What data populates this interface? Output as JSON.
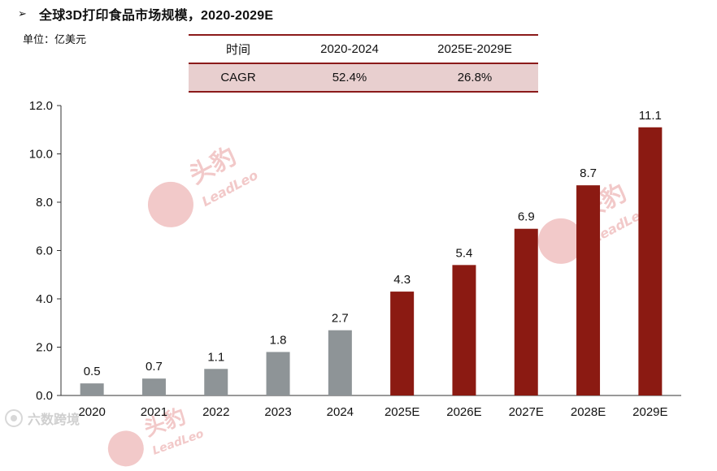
{
  "header": {
    "arrow": "➢",
    "title": "全球3D打印食品市场规模，2020-2029E",
    "unit": "单位：亿美元"
  },
  "cagr_table": {
    "headers": [
      "时间",
      "2020-2024",
      "2025E-2029E"
    ],
    "row": [
      "CAGR",
      "52.4%",
      "26.8%"
    ]
  },
  "watermarks": {
    "brand_cn": "头豹",
    "brand_en": "LeadLeo"
  },
  "footer": {
    "logo_text": "六数跨境"
  },
  "colors": {
    "actual": "#8e9497",
    "forecast": "#8b1a12",
    "accent": "#8b1a1a",
    "table_row_bg": "#e8cfcf",
    "watermark": "#f2c9c9"
  },
  "chart_data": {
    "type": "bar",
    "categories": [
      "2020",
      "2021",
      "2022",
      "2023",
      "2024",
      "2025E",
      "2026E",
      "2027E",
      "2028E",
      "2029E"
    ],
    "values": [
      0.5,
      0.7,
      1.1,
      1.8,
      2.7,
      4.3,
      5.4,
      6.9,
      8.7,
      11.1
    ],
    "value_labels": [
      "0.5",
      "0.7",
      "1.1",
      "1.8",
      "2.7",
      "4.3",
      "5.4",
      "6.9",
      "8.7",
      "11.1"
    ],
    "forecast_flags": [
      false,
      false,
      false,
      false,
      false,
      true,
      true,
      true,
      true,
      true
    ],
    "yticks": [
      "0.0",
      "2.0",
      "4.0",
      "6.0",
      "8.0",
      "10.0",
      "12.0"
    ],
    "ylim": [
      0,
      12
    ],
    "title": "",
    "xlabel": "",
    "ylabel": "",
    "grid": false,
    "legend": "none"
  }
}
